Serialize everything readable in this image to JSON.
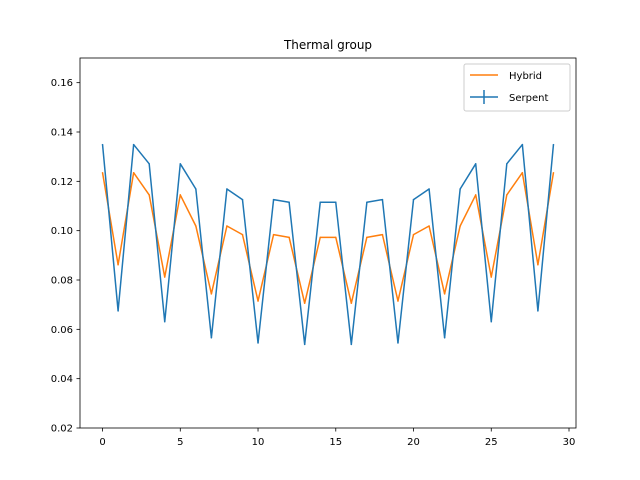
{
  "chart_data": {
    "type": "line",
    "title": "Thermal group",
    "xlabel": "",
    "ylabel": "",
    "xlim": [
      -1.45,
      30.45
    ],
    "ylim": [
      0.02,
      0.17
    ],
    "xticks": [
      0,
      5,
      10,
      15,
      20,
      25,
      30
    ],
    "yticks": [
      0.02,
      0.04,
      0.06,
      0.08,
      0.1,
      0.12,
      0.14,
      0.16
    ],
    "xtick_labels": [
      "0",
      "5",
      "10",
      "15",
      "20",
      "25",
      "30"
    ],
    "ytick_labels": [
      "0.02",
      "0.04",
      "0.06",
      "0.08",
      "0.10",
      "0.12",
      "0.14",
      "0.16"
    ],
    "grid": false,
    "legend_position": "top-right",
    "x": [
      0,
      1,
      2,
      3,
      4,
      5,
      6,
      7,
      8,
      9,
      10,
      11,
      12,
      13,
      14,
      15,
      16,
      17,
      18,
      19,
      20,
      21,
      22,
      23,
      24,
      25,
      26,
      27,
      28,
      29
    ],
    "series": [
      {
        "name": "Hybrid",
        "color": "#ff7f0e",
        "marker": "line",
        "values": [
          0.1235,
          0.0862,
          0.1235,
          0.1145,
          0.0812,
          0.1145,
          0.1019,
          0.0744,
          0.1019,
          0.0984,
          0.0715,
          0.0984,
          0.0973,
          0.0706,
          0.0973,
          0.0973,
          0.0706,
          0.0973,
          0.0984,
          0.0715,
          0.0984,
          0.1019,
          0.0744,
          0.1019,
          0.1145,
          0.0812,
          0.1145,
          0.1235,
          0.0862,
          0.1235
        ]
      },
      {
        "name": "Serpent",
        "color": "#1f77b4",
        "marker": "errorbar",
        "values": [
          0.1349,
          0.0675,
          0.1349,
          0.1271,
          0.0631,
          0.1271,
          0.1169,
          0.0566,
          0.1169,
          0.1126,
          0.0545,
          0.1126,
          0.1115,
          0.0539,
          0.1115,
          0.1115,
          0.0539,
          0.1115,
          0.1126,
          0.0545,
          0.1126,
          0.1169,
          0.0566,
          0.1169,
          0.1271,
          0.0631,
          0.1271,
          0.1349,
          0.0675,
          0.1349
        ]
      }
    ]
  }
}
